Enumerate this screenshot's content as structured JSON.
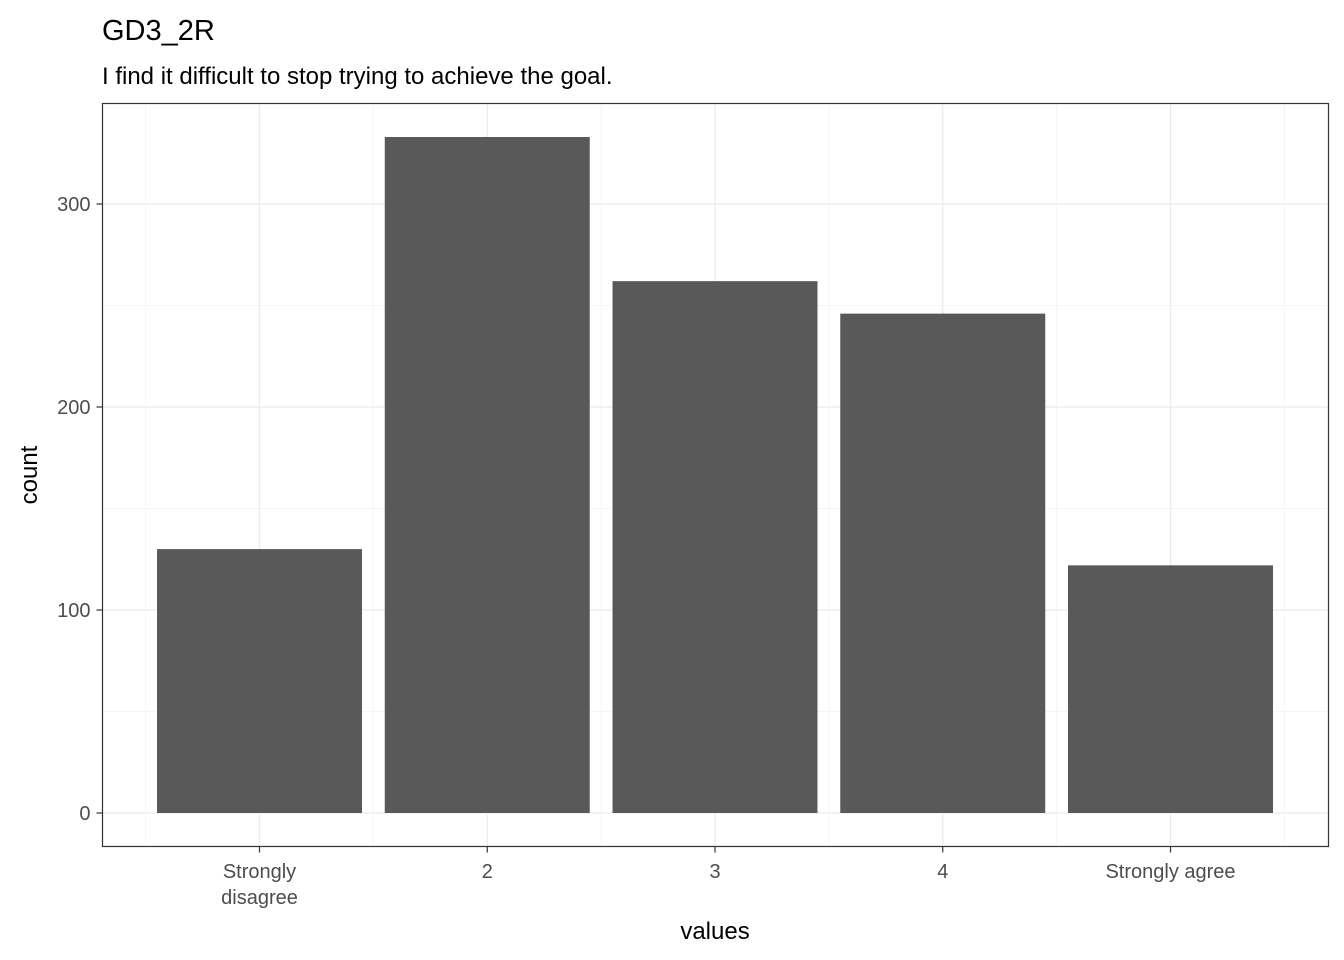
{
  "chart_data": {
    "type": "bar",
    "title": "GD3_2R",
    "subtitle": "I find it difficult to stop trying to achieve the goal.",
    "xlabel": "values",
    "ylabel": "count",
    "categories": [
      "Strongly\ndisagree",
      "2",
      "3",
      "4",
      "Strongly agree"
    ],
    "values": [
      130,
      333,
      262,
      246,
      122
    ],
    "ylim": [
      0,
      346
    ],
    "y_ticks": [
      0,
      100,
      200,
      300
    ],
    "grid": true,
    "bar_color": "#595959",
    "panel_border_color": "#333333",
    "grid_major_color": "#ebebeb",
    "grid_minor_color": "#f5f5f5"
  }
}
